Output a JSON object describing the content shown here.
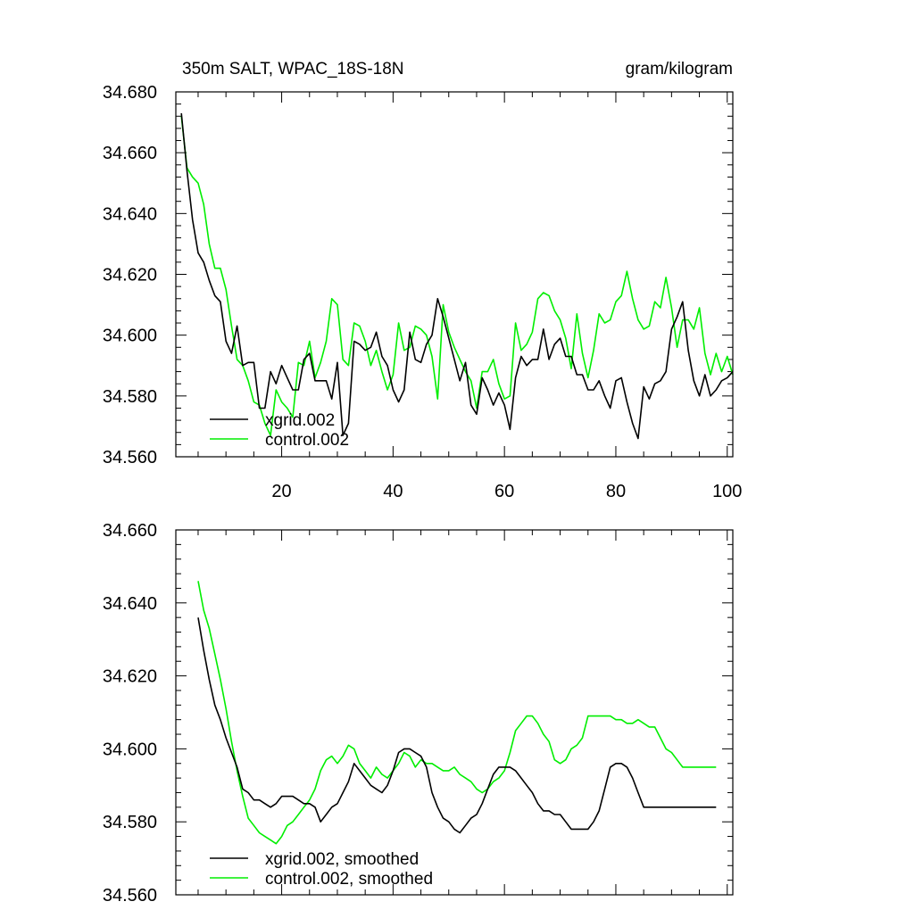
{
  "chart_data": [
    {
      "type": "line",
      "title": "350m SALT, WPAC_18S-18N",
      "units": "gram/kilogram",
      "xlim": [
        1,
        101
      ],
      "ylim": [
        34.56,
        34.68
      ],
      "xticks": [
        20,
        40,
        60,
        80,
        100
      ],
      "xtick_labels": [
        "20",
        "40",
        "60",
        "80",
        "100"
      ],
      "yticks": [
        34.56,
        34.58,
        34.6,
        34.62,
        34.64,
        34.66,
        34.68
      ],
      "ytick_labels": [
        "34.560",
        "34.580",
        "34.600",
        "34.620",
        "34.640",
        "34.660",
        "34.680"
      ],
      "legend_position": "bottom-left",
      "x": [
        2,
        3,
        4,
        5,
        6,
        7,
        8,
        9,
        10,
        11,
        12,
        13,
        14,
        15,
        16,
        17,
        18,
        19,
        20,
        21,
        22,
        23,
        24,
        25,
        26,
        27,
        28,
        29,
        30,
        31,
        32,
        33,
        34,
        35,
        36,
        37,
        38,
        39,
        40,
        41,
        42,
        43,
        44,
        45,
        46,
        47,
        48,
        49,
        50,
        51,
        52,
        53,
        54,
        55,
        56,
        57,
        58,
        59,
        60,
        61,
        62,
        63,
        64,
        65,
        66,
        67,
        68,
        69,
        70,
        71,
        72,
        73,
        74,
        75,
        76,
        77,
        78,
        79,
        80,
        81,
        82,
        83,
        84,
        85,
        86,
        87,
        88,
        89,
        90,
        91,
        92,
        93,
        94,
        95,
        96,
        97,
        98,
        99,
        100,
        101
      ],
      "series": [
        {
          "name": "xgrid.002",
          "color": "#000000",
          "values": [
            34.673,
            34.654,
            34.638,
            34.627,
            34.624,
            34.618,
            34.613,
            34.611,
            34.598,
            34.594,
            34.603,
            34.59,
            34.591,
            34.591,
            34.576,
            34.576,
            34.588,
            34.584,
            34.59,
            34.586,
            34.582,
            34.582,
            34.592,
            34.594,
            34.585,
            34.585,
            34.585,
            34.579,
            34.591,
            34.567,
            34.571,
            34.598,
            34.597,
            34.595,
            34.596,
            34.601,
            34.593,
            34.59,
            34.582,
            34.578,
            34.582,
            34.601,
            34.592,
            34.591,
            34.597,
            34.6,
            34.612,
            34.606,
            34.599,
            34.592,
            34.585,
            34.591,
            34.577,
            34.574,
            34.586,
            34.582,
            34.577,
            34.581,
            34.577,
            34.569,
            34.586,
            34.593,
            34.59,
            34.592,
            34.592,
            34.602,
            34.592,
            34.597,
            34.599,
            34.593,
            34.593,
            34.587,
            34.587,
            34.582,
            34.582,
            34.585,
            34.58,
            34.576,
            34.585,
            34.586,
            34.578,
            34.571,
            34.566,
            34.583,
            34.579,
            34.584,
            34.585,
            34.588,
            34.602,
            34.606,
            34.611,
            34.595,
            34.585,
            34.58,
            34.587,
            34.58,
            34.582,
            34.585,
            34.586,
            34.588
          ]
        },
        {
          "name": "control.002",
          "color": "#00ee00",
          "values": [
            34.672,
            34.655,
            34.652,
            34.65,
            34.643,
            34.63,
            34.622,
            34.622,
            34.615,
            34.603,
            34.592,
            34.59,
            34.585,
            34.578,
            34.577,
            34.571,
            34.567,
            34.582,
            34.578,
            34.576,
            34.573,
            34.591,
            34.59,
            34.598,
            34.586,
            34.591,
            34.598,
            34.612,
            34.61,
            34.592,
            34.59,
            34.604,
            34.603,
            34.598,
            34.59,
            34.595,
            34.588,
            34.582,
            34.587,
            34.604,
            34.595,
            34.596,
            34.603,
            34.602,
            34.6,
            34.593,
            34.579,
            34.61,
            34.601,
            34.596,
            34.592,
            34.588,
            34.585,
            34.576,
            34.588,
            34.588,
            34.592,
            34.584,
            34.579,
            34.58,
            34.604,
            34.595,
            34.597,
            34.601,
            34.612,
            34.614,
            34.613,
            34.608,
            34.605,
            34.599,
            34.589,
            34.607,
            34.594,
            34.586,
            34.595,
            34.607,
            34.604,
            34.605,
            34.611,
            34.613,
            34.621,
            34.612,
            34.605,
            34.602,
            34.603,
            34.611,
            34.609,
            34.619,
            34.609,
            34.596,
            34.605,
            34.605,
            34.602,
            34.609,
            34.594,
            34.587,
            34.594,
            34.588,
            34.593,
            34.587
          ]
        }
      ]
    },
    {
      "type": "line",
      "title": "",
      "xlim": [
        1,
        101
      ],
      "ylim": [
        34.56,
        34.66
      ],
      "xticks": [
        20,
        40,
        60,
        80,
        100
      ],
      "yticks": [
        34.56,
        34.58,
        34.6,
        34.62,
        34.64,
        34.66
      ],
      "ytick_labels": [
        "34.560",
        "34.580",
        "34.600",
        "34.620",
        "34.640",
        "34.660"
      ],
      "legend_position": "bottom-left",
      "x": [
        5,
        6,
        7,
        8,
        9,
        10,
        11,
        12,
        13,
        14,
        15,
        16,
        17,
        18,
        19,
        20,
        21,
        22,
        23,
        24,
        25,
        26,
        27,
        28,
        29,
        30,
        31,
        32,
        33,
        34,
        35,
        36,
        37,
        38,
        39,
        40,
        41,
        42,
        43,
        44,
        45,
        46,
        47,
        48,
        49,
        50,
        51,
        52,
        53,
        54,
        55,
        56,
        57,
        58,
        59,
        60,
        61,
        62,
        63,
        64,
        65,
        66,
        67,
        68,
        69,
        70,
        71,
        72,
        73,
        74,
        75,
        76,
        77,
        78,
        79,
        80,
        81,
        82,
        83,
        84,
        85,
        86,
        87,
        88,
        89,
        90,
        91,
        92,
        93,
        94,
        95,
        96,
        97,
        98
      ],
      "series": [
        {
          "name": "xgrid.002, smoothed",
          "color": "#000000",
          "values": [
            34.636,
            34.627,
            34.619,
            34.612,
            34.608,
            34.603,
            34.599,
            34.595,
            34.589,
            34.588,
            34.586,
            34.586,
            34.585,
            34.584,
            34.585,
            34.587,
            34.587,
            34.587,
            34.586,
            34.585,
            34.585,
            34.584,
            34.58,
            34.582,
            34.584,
            34.585,
            34.588,
            34.591,
            34.596,
            34.594,
            34.592,
            34.59,
            34.589,
            34.588,
            34.59,
            34.594,
            34.599,
            34.6,
            34.6,
            34.599,
            34.598,
            34.595,
            34.588,
            34.584,
            34.581,
            34.58,
            34.578,
            34.577,
            34.579,
            34.581,
            34.582,
            34.585,
            34.589,
            34.593,
            34.595,
            34.595,
            34.595,
            34.594,
            34.592,
            34.59,
            34.588,
            34.585,
            34.583,
            34.583,
            34.582,
            34.582,
            34.58,
            34.578,
            34.578,
            34.578,
            34.578,
            34.58,
            34.583,
            34.589,
            34.595,
            34.596,
            34.596,
            34.595,
            34.592,
            34.588,
            34.584,
            34.584,
            34.584,
            34.584,
            34.584,
            34.584,
            34.584,
            34.584,
            34.584,
            34.584,
            34.584,
            34.584,
            34.584,
            34.584
          ],
          "draw_until": 98
        },
        {
          "name": "control.002, smoothed",
          "color": "#00ee00",
          "values": [
            34.646,
            34.638,
            34.633,
            34.626,
            34.619,
            34.611,
            34.602,
            34.594,
            34.587,
            34.581,
            34.579,
            34.577,
            34.576,
            34.575,
            34.574,
            34.576,
            34.579,
            34.58,
            34.582,
            34.584,
            34.586,
            34.589,
            34.594,
            34.597,
            34.598,
            34.596,
            34.598,
            34.601,
            34.6,
            34.596,
            34.594,
            34.592,
            34.595,
            34.593,
            34.592,
            34.594,
            34.596,
            34.599,
            34.598,
            34.595,
            34.597,
            34.596,
            34.596,
            34.595,
            34.594,
            34.594,
            34.595,
            34.593,
            34.592,
            34.591,
            34.589,
            34.588,
            34.589,
            34.591,
            34.592,
            34.594,
            34.599,
            34.605,
            34.607,
            34.609,
            34.609,
            34.607,
            34.604,
            34.602,
            34.597,
            34.596,
            34.597,
            34.6,
            34.601,
            34.603,
            34.609,
            34.609,
            34.609,
            34.609,
            34.609,
            34.608,
            34.608,
            34.607,
            34.607,
            34.608,
            34.607,
            34.606,
            34.606,
            34.603,
            34.6,
            34.599,
            34.597,
            34.595,
            34.595,
            34.595,
            34.595,
            34.595,
            34.595,
            34.595
          ],
          "draw_until": 98
        }
      ]
    }
  ]
}
